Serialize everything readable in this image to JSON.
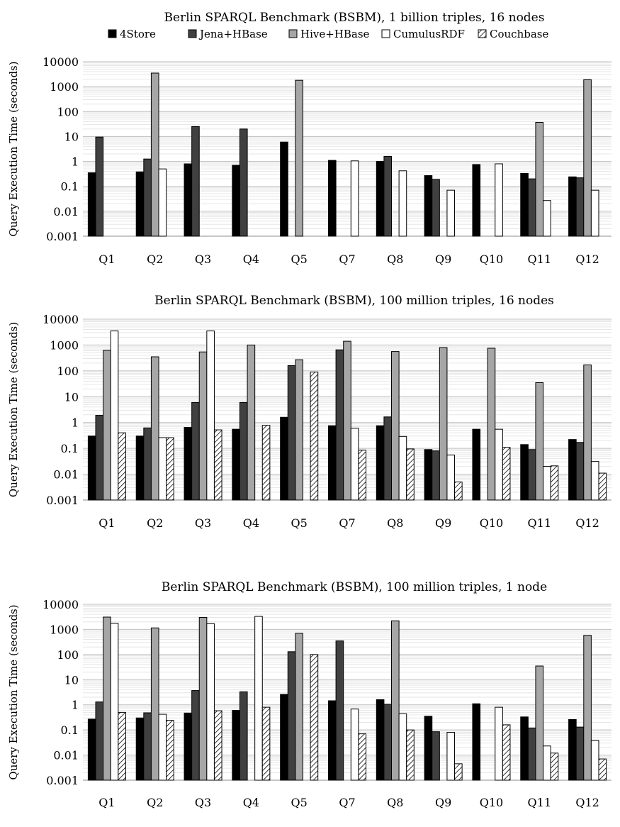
{
  "legend": {
    "entries": [
      {
        "name": "4Store",
        "fill": "#000000"
      },
      {
        "name": "Jena+HBase",
        "fill": "#404040"
      },
      {
        "name": "Hive+HBase",
        "fill": "#a6a6a6"
      },
      {
        "name": "CumulusRDF",
        "fill": "#ffffff"
      },
      {
        "name": "Couchbase",
        "fill": "hatch"
      }
    ]
  },
  "chart_data": [
    {
      "type": "bar",
      "title": "Berlin SPARQL Benchmark (BSBM), 1 billion triples, 16 nodes",
      "ylabel": "Query Execution Time (seconds)",
      "xlabel": "",
      "yscale": "log",
      "ylim": [
        0.001,
        10000
      ],
      "ytick_labels": [
        "0.001",
        "0.01",
        "0.1",
        "1",
        "10",
        "100",
        "1000",
        "10000"
      ],
      "grid": true,
      "legend_position": "top",
      "categories": [
        "Q1",
        "Q2",
        "Q3",
        "Q4",
        "Q5",
        "Q7",
        "Q8",
        "Q9",
        "Q10",
        "Q11",
        "Q12"
      ],
      "series": [
        {
          "name": "4Store",
          "values": [
            0.35,
            0.38,
            0.8,
            0.7,
            6.0,
            1.1,
            1.0,
            0.27,
            0.75,
            0.33,
            0.24
          ]
        },
        {
          "name": "Jena+HBase",
          "values": [
            9.5,
            1.25,
            25,
            20,
            null,
            null,
            1.6,
            0.19,
            null,
            0.2,
            0.22
          ]
        },
        {
          "name": "Hive+HBase",
          "values": [
            null,
            3500,
            null,
            null,
            1800,
            null,
            null,
            null,
            null,
            37,
            1900
          ]
        },
        {
          "name": "CumulusRDF",
          "values": [
            null,
            0.5,
            null,
            null,
            null,
            1.05,
            0.42,
            0.07,
            0.8,
            0.027,
            0.07
          ]
        },
        {
          "name": "Couchbase",
          "values": [
            null,
            null,
            null,
            null,
            null,
            null,
            null,
            null,
            null,
            null,
            null
          ]
        }
      ]
    },
    {
      "type": "bar",
      "title": "Berlin SPARQL Benchmark (BSBM), 100 million triples, 16 nodes",
      "ylabel": "Query Execution Time (seconds)",
      "xlabel": "",
      "yscale": "log",
      "ylim": [
        0.001,
        10000
      ],
      "ytick_labels": [
        "0.001",
        "0.01",
        "0.1",
        "1",
        "10",
        "100",
        "1000",
        "10000"
      ],
      "grid": true,
      "categories": [
        "Q1",
        "Q2",
        "Q3",
        "Q4",
        "Q5",
        "Q7",
        "Q8",
        "Q9",
        "Q10",
        "Q11",
        "Q12"
      ],
      "series": [
        {
          "name": "4Store",
          "values": [
            0.3,
            0.3,
            0.65,
            0.55,
            1.6,
            0.75,
            0.75,
            0.09,
            0.55,
            0.14,
            0.22
          ]
        },
        {
          "name": "Jena+HBase",
          "values": [
            1.9,
            0.62,
            6.0,
            6.0,
            160,
            650,
            1.65,
            0.08,
            null,
            0.09,
            0.17
          ]
        },
        {
          "name": "Hive+HBase",
          "values": [
            620,
            350,
            540,
            1000,
            270,
            1400,
            560,
            800,
            750,
            35,
            170
          ]
        },
        {
          "name": "CumulusRDF",
          "values": [
            3500,
            0.26,
            3500,
            null,
            null,
            0.6,
            0.29,
            0.055,
            0.55,
            0.02,
            0.031
          ]
        },
        {
          "name": "Couchbase",
          "values": [
            0.4,
            0.26,
            0.52,
            0.78,
            90,
            0.085,
            0.095,
            0.005,
            0.11,
            0.021,
            0.011
          ]
        }
      ]
    },
    {
      "type": "bar",
      "title": "Berlin SPARQL Benchmark (BSBM), 100 million triples, 1 node",
      "ylabel": "Query Execution Time (seconds)",
      "xlabel": "",
      "yscale": "log",
      "ylim": [
        0.001,
        10000
      ],
      "ytick_labels": [
        "0.001",
        "0.01",
        "0.1",
        "1",
        "10",
        "100",
        "1000",
        "10000"
      ],
      "grid": true,
      "categories": [
        "Q1",
        "Q2",
        "Q3",
        "Q4",
        "Q5",
        "Q7",
        "Q8",
        "Q9",
        "Q10",
        "Q11",
        "Q12"
      ],
      "series": [
        {
          "name": "4Store",
          "values": [
            0.27,
            0.3,
            0.47,
            0.6,
            2.6,
            1.45,
            1.6,
            0.35,
            1.1,
            0.33,
            0.26
          ]
        },
        {
          "name": "Jena+HBase",
          "values": [
            1.3,
            0.48,
            3.7,
            3.3,
            130,
            350,
            1.05,
            0.085,
            null,
            0.12,
            0.13
          ]
        },
        {
          "name": "Hive+HBase",
          "values": [
            3100,
            1150,
            3000,
            null,
            700,
            null,
            2200,
            null,
            null,
            35,
            580
          ]
        },
        {
          "name": "CumulusRDF",
          "values": [
            1750,
            0.42,
            1700,
            3300,
            null,
            0.68,
            0.44,
            0.08,
            0.8,
            0.023,
            0.038
          ]
        },
        {
          "name": "Couchbase",
          "values": [
            0.5,
            0.24,
            0.58,
            0.8,
            100,
            0.07,
            0.1,
            0.0045,
            0.16,
            0.012,
            0.007
          ]
        }
      ]
    }
  ]
}
